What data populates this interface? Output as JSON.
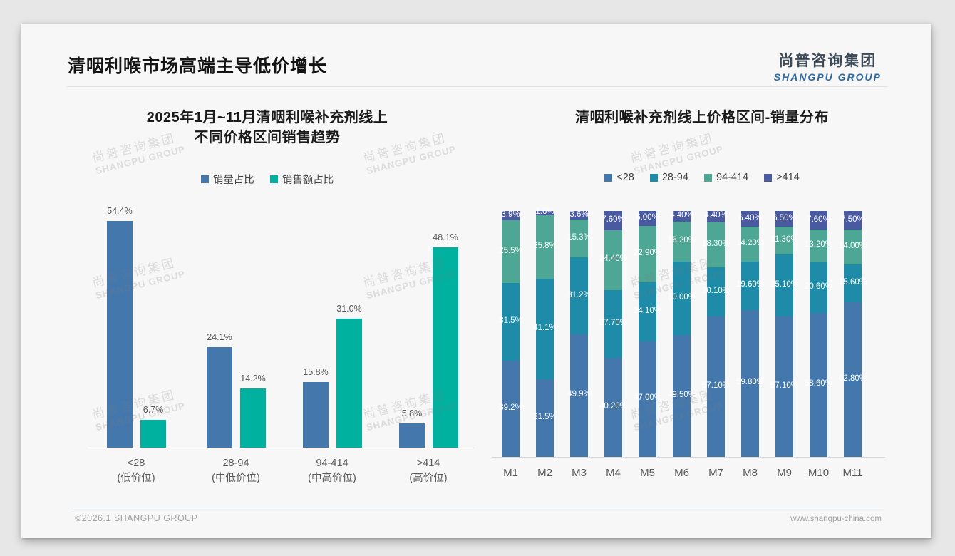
{
  "page": {
    "title": "清咽利喉市场高端主导低价增长"
  },
  "logo": {
    "cn": "尚普咨询集团",
    "en": "SHANGPU GROUP"
  },
  "watermark": {
    "cn": "尚普咨询集团",
    "en": "SHANGPU GROUP"
  },
  "footer": {
    "left": "©2026.1 SHANGPU GROUP",
    "right": "www.shangpu-china.com"
  },
  "colors": {
    "volume_blue": "#4478ad",
    "revenue_teal": "#00b1a0",
    "stack_lt28": "#4478ad",
    "stack_28_94": "#1e8ba8",
    "stack_94_414": "#4ea794",
    "stack_gt414": "#4a5aa0",
    "logo_blue": "#2d6ca5",
    "logo_dark": "#3d4a57"
  },
  "chart_data": [
    {
      "type": "bar",
      "title": "2025年1月~11月清咽利喉补充剂线上不同价格区间销售趋势",
      "title_lines": [
        "2025年1月~11月清咽利喉补充剂线上",
        "不同价格区间销售趋势"
      ],
      "xlabel": "",
      "ylabel": "",
      "ylim": [
        0,
        58
      ],
      "grid": false,
      "legend_position": "top",
      "categories": [
        {
          "range": "<28",
          "tier": "(低价位)"
        },
        {
          "range": "28-94",
          "tier": "(中低价位)"
        },
        {
          "range": "94-414",
          "tier": "(中高价位)"
        },
        {
          "range": ">414",
          "tier": "(高价位)"
        }
      ],
      "series": [
        {
          "name": "销量占比",
          "color": "#4478ad",
          "values": [
            54.4,
            24.1,
            15.8,
            5.8
          ],
          "labels": [
            "54.4%",
            "24.1%",
            "15.8%",
            "5.8%"
          ]
        },
        {
          "name": "销售额占比",
          "color": "#00b1a0",
          "values": [
            6.7,
            14.2,
            31.0,
            48.1
          ],
          "labels": [
            "6.7%",
            "14.2%",
            "31.0%",
            "48.1%"
          ]
        }
      ]
    },
    {
      "type": "stacked-bar",
      "title": "清咽利喉补充剂线上价格区间-销量分布",
      "xlabel": "",
      "ylabel": "",
      "ylim": [
        0,
        100
      ],
      "grid": false,
      "legend_position": "top",
      "categories": [
        "M1",
        "M2",
        "M3",
        "M4",
        "M5",
        "M6",
        "M7",
        "M8",
        "M9",
        "M10",
        "M11"
      ],
      "series": [
        {
          "name": "<28",
          "color": "#4478ad",
          "values": [
            39.2,
            31.5,
            49.9,
            40.2,
            47.0,
            49.5,
            57.1,
            59.8,
            57.1,
            58.6,
            62.8
          ],
          "labels": [
            "39.2%",
            "31.5%",
            "49.9%",
            "40.20%",
            "47.00%",
            "49.50%",
            "57.10%",
            "59.80%",
            "57.10%",
            "58.60%",
            "62.80%"
          ]
        },
        {
          "name": "28-94",
          "color": "#1e8ba8",
          "values": [
            31.5,
            41.1,
            31.2,
            27.7,
            24.1,
            30.0,
            20.1,
            19.6,
            25.1,
            20.6,
            15.6
          ],
          "labels": [
            "31.5%",
            "41.1%",
            "31.2%",
            "27.70%",
            "24.10%",
            "30.00%",
            "20.10%",
            "19.60%",
            "25.10%",
            "20.60%",
            "15.60%"
          ]
        },
        {
          "name": "94-414",
          "color": "#4ea794",
          "values": [
            25.5,
            25.8,
            15.3,
            24.4,
            22.9,
            16.2,
            18.3,
            14.2,
            11.3,
            13.2,
            14.0
          ],
          "labels": [
            "25.5%",
            "25.8%",
            "15.3%",
            "24.40%",
            "22.90%",
            "16.20%",
            "18.30%",
            "14.20%",
            "11.30%",
            "13.20%",
            "14.00%"
          ]
        },
        {
          "name": ">414",
          "color": "#4a5aa0",
          "values": [
            3.9,
            1.6,
            3.6,
            7.6,
            6.0,
            4.4,
            4.4,
            6.4,
            6.5,
            7.6,
            7.5
          ],
          "labels": [
            "3.9%",
            "1.6%",
            "3.6%",
            "7.60%",
            "6.00%",
            "4.40%",
            "4.40%",
            "6.40%",
            "6.50%",
            "7.60%",
            "7.50%"
          ]
        }
      ]
    }
  ]
}
